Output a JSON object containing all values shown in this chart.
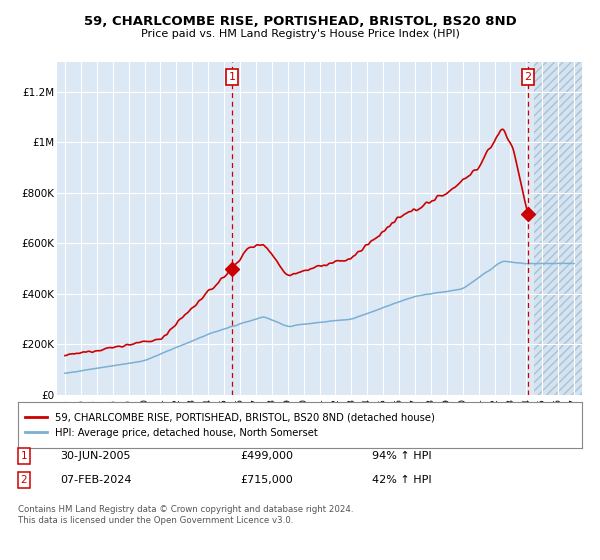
{
  "title_line1": "59, CHARLCOMBE RISE, PORTISHEAD, BRISTOL, BS20 8ND",
  "title_line2": "Price paid vs. HM Land Registry's House Price Index (HPI)",
  "background_color": "#dce9f5",
  "red_line_color": "#cc0000",
  "blue_line_color": "#7bafd4",
  "legend_red_label": "59, CHARLCOMBE RISE, PORTISHEAD, BRISTOL, BS20 8ND (detached house)",
  "legend_blue_label": "HPI: Average price, detached house, North Somerset",
  "annotation1_date": "30-JUN-2005",
  "annotation1_price": "£499,000",
  "annotation1_hpi": "94% ↑ HPI",
  "annotation2_date": "07-FEB-2024",
  "annotation2_price": "£715,000",
  "annotation2_hpi": "42% ↑ HPI",
  "footer": "Contains HM Land Registry data © Crown copyright and database right 2024.\nThis data is licensed under the Open Government Licence v3.0.",
  "yticks": [
    0,
    200000,
    400000,
    600000,
    800000,
    1000000,
    1200000
  ],
  "ytick_labels": [
    "£0",
    "£200K",
    "£400K",
    "£600K",
    "£800K",
    "£1M",
    "£1.2M"
  ],
  "m1_x": 2005.5,
  "m1_y": 499000,
  "m2_x": 2024.1,
  "m2_y": 715000,
  "xmin": 1994.5,
  "xmax": 2027.5,
  "ymin": 0,
  "ymax": 1320000,
  "future_start": 2024.5
}
